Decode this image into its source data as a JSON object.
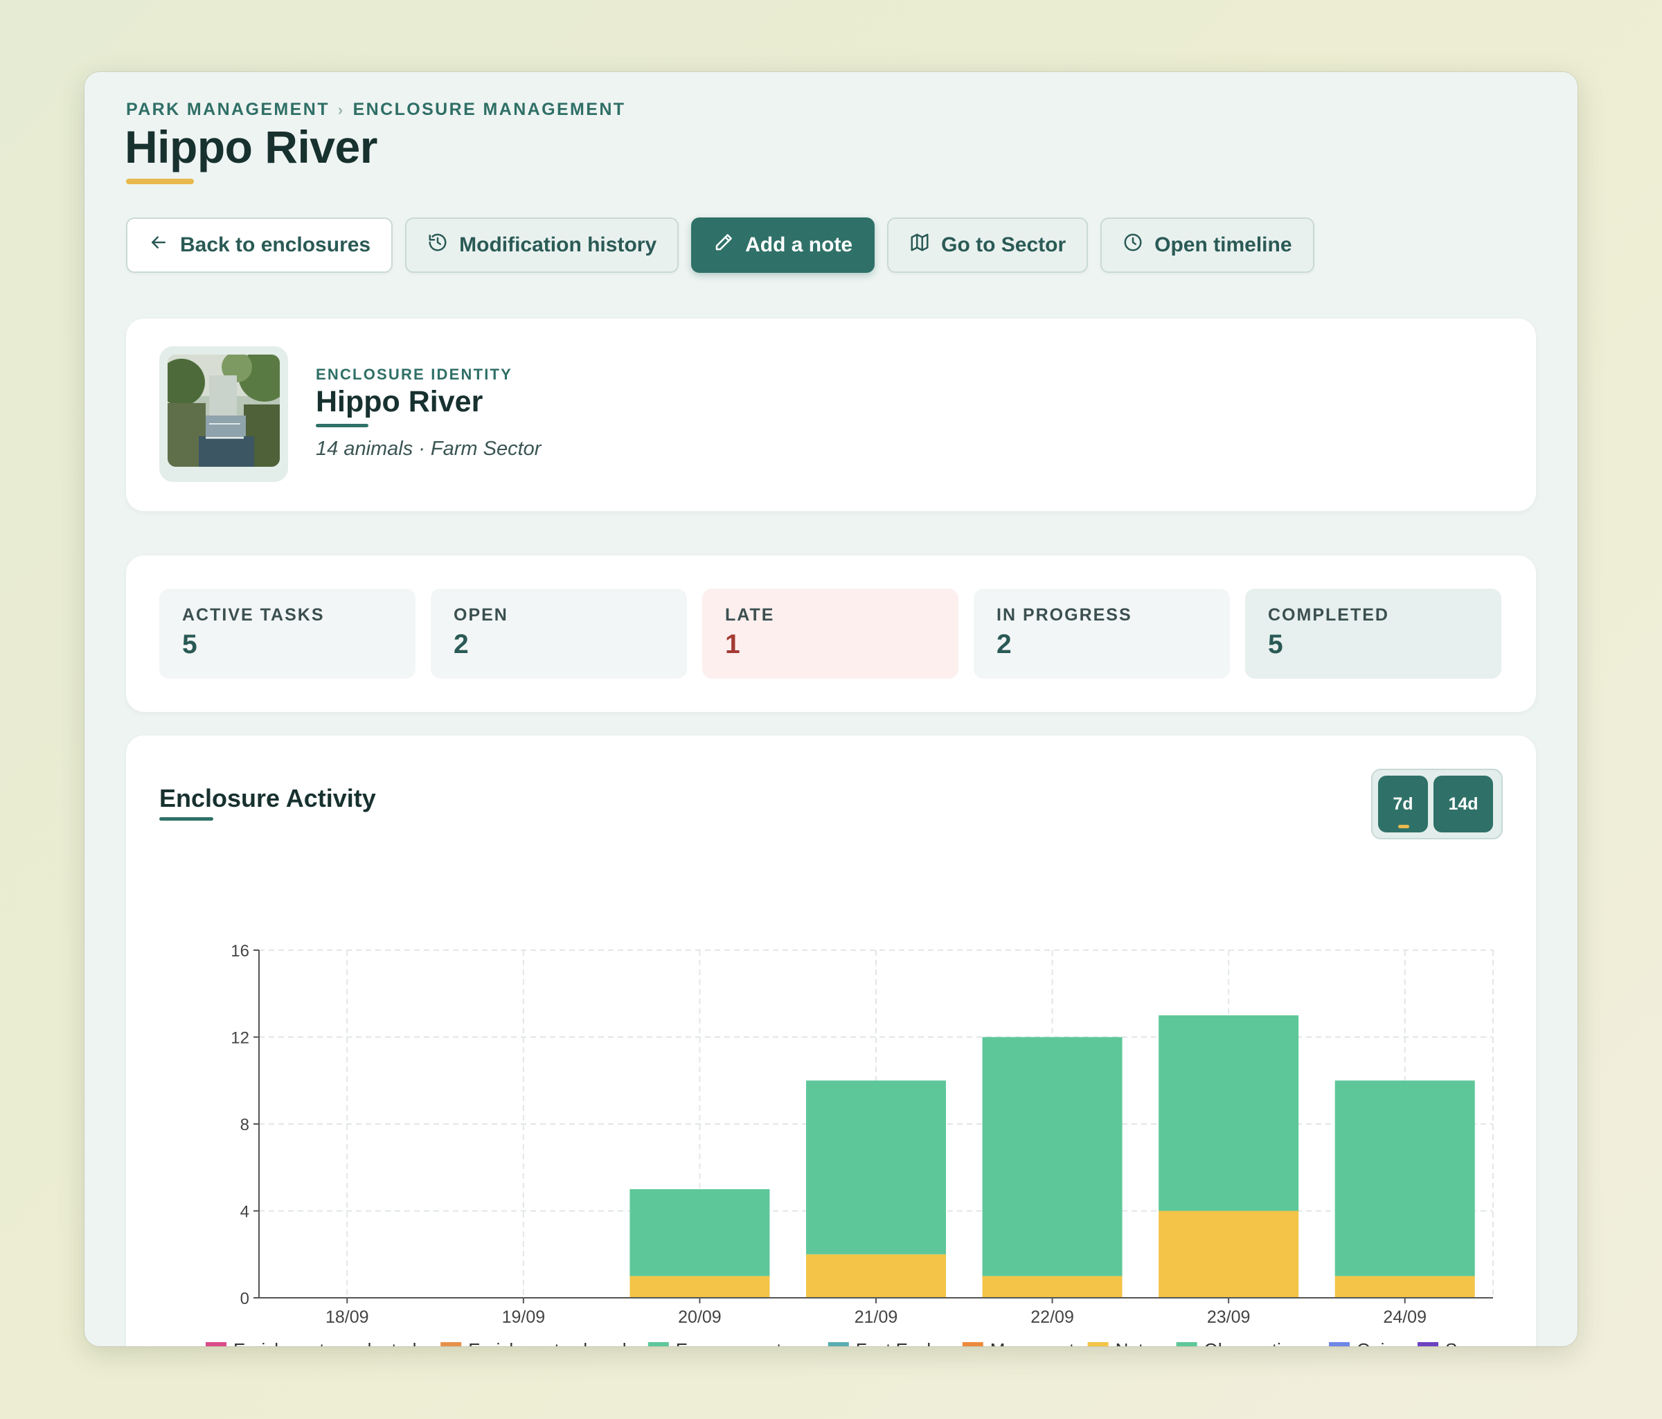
{
  "breadcrumb": {
    "items": [
      "PARK MANAGEMENT",
      "ENCLOSURE MANAGEMENT"
    ],
    "separator": "›"
  },
  "page_title": "Hippo River",
  "toolbar": {
    "back_label": "Back to enclosures",
    "history_label": "Modification history",
    "note_label": "Add a note",
    "sector_label": "Go to Sector",
    "timeline_label": "Open timeline"
  },
  "identity": {
    "kicker": "ENCLOSURE IDENTITY",
    "name": "Hippo River",
    "animals": "14 animals",
    "separator": "·",
    "sector": "Farm Sector"
  },
  "stats": [
    {
      "label": "ACTIVE TASKS",
      "value": "5"
    },
    {
      "label": "OPEN",
      "value": "2"
    },
    {
      "label": "LATE",
      "value": "1"
    },
    {
      "label": "IN PROGRESS",
      "value": "2"
    },
    {
      "label": "COMPLETED",
      "value": "5"
    }
  ],
  "activity": {
    "title": "Enclosure Activity",
    "ranges": [
      "7d",
      "14d"
    ],
    "active_range": "7d"
  },
  "colors": {
    "accent": "#2f7168",
    "highlight": "#e9b94e",
    "late": "#a33a34"
  },
  "chart_data": {
    "type": "bar",
    "stacked": true,
    "categories": [
      "18/09",
      "19/09",
      "20/09",
      "21/09",
      "22/09",
      "23/09",
      "24/09"
    ],
    "ylim": [
      0,
      16
    ],
    "yticks": [
      0,
      4,
      8,
      12,
      16
    ],
    "grid": true,
    "legend_position": "bottom",
    "title": "Enclosure Activity",
    "xlabel": "",
    "ylabel": "",
    "series": [
      {
        "name": "Enrichments evaluated",
        "color": "#d94c8a",
        "values": [
          0,
          0,
          0,
          0,
          0,
          0,
          0
        ]
      },
      {
        "name": "Enrichments placed",
        "color": "#e8914a",
        "values": [
          0,
          0,
          0,
          0,
          0,
          0,
          0
        ]
      },
      {
        "name": "Env. parameters",
        "color": "#5ec79a",
        "values": [
          0,
          0,
          0,
          0,
          0,
          0,
          0
        ]
      },
      {
        "name": "Fast Evals",
        "color": "#5aaeb0",
        "values": [
          0,
          0,
          0,
          0,
          0,
          0,
          0
        ]
      },
      {
        "name": "Movements",
        "color": "#ec8a3c",
        "values": [
          0,
          0,
          0,
          0,
          0,
          0,
          0
        ]
      },
      {
        "name": "Notes",
        "color": "#f3c447",
        "values": [
          0,
          0,
          1,
          2,
          1,
          4,
          1
        ]
      },
      {
        "name": "Observations",
        "color": "#5ec79a",
        "values": [
          0,
          0,
          4,
          8,
          11,
          9,
          9
        ]
      },
      {
        "name": "Quizz",
        "color": "#6f87e6",
        "values": [
          0,
          0,
          0,
          0,
          0,
          0,
          0
        ]
      },
      {
        "name": "Scans",
        "color": "#6d43c0",
        "values": [
          0,
          0,
          0,
          0,
          0,
          0,
          0
        ]
      }
    ]
  }
}
